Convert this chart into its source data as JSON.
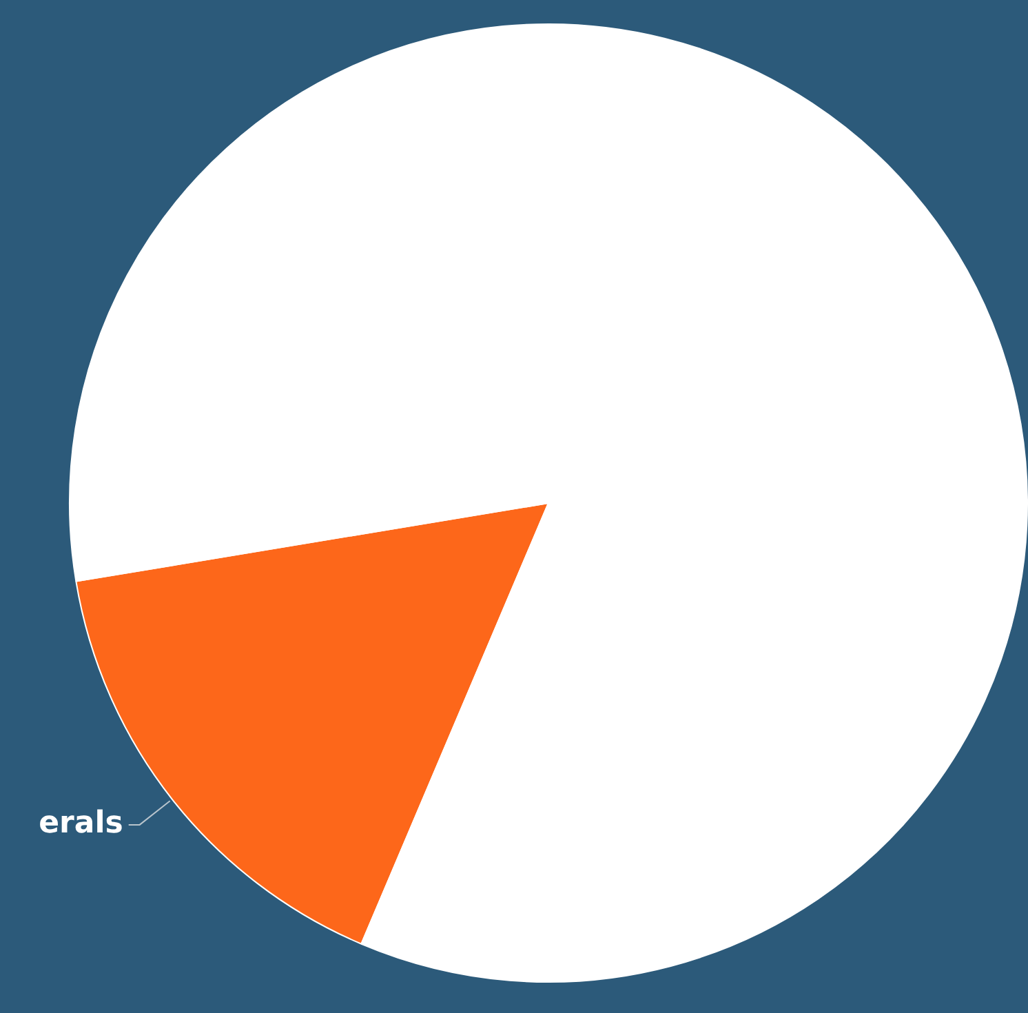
{
  "chart_data": {
    "type": "pie",
    "categories": [
      "erals",
      null
    ],
    "values": [
      16,
      84
    ],
    "colors": [
      "#fd671a",
      "#ffffff"
    ],
    "legend": false
  }
}
